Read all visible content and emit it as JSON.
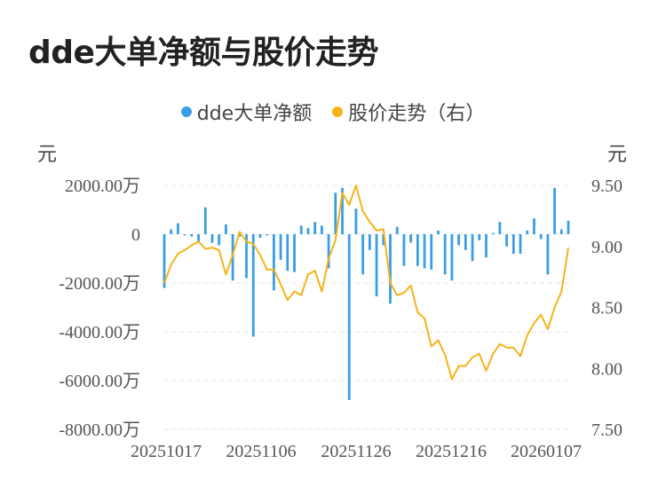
{
  "title": "dde大单净额与股价走势",
  "legend": {
    "bar_label": "dde大单净额",
    "line_label": "股价走势（右）"
  },
  "units": {
    "left": "元",
    "right": "元"
  },
  "colors": {
    "bar": "#3a9ee4",
    "line": "#f5b318",
    "grid": "#e6e6e6"
  },
  "chart_data": {
    "type": "bar",
    "title": "dde大单净额与股价走势",
    "x_tick_labels": [
      "20251017",
      "20251106",
      "20251126",
      "20251216",
      "20260107"
    ],
    "y_left_ticks": [
      "2000.00万",
      "0",
      "-2000.00万",
      "-4000.00万",
      "-6000.00万",
      "-8000.00万"
    ],
    "y_right_ticks": [
      "9.50",
      "9.00",
      "8.50",
      "8.00",
      "7.50"
    ],
    "ylim_left": [
      -8000,
      2000
    ],
    "ylim_right": [
      7.5,
      9.5
    ],
    "grid": true,
    "legend_position": "top-center",
    "series": [
      {
        "name": "dde大单净额",
        "type": "bar",
        "axis": "left",
        "unit": "万",
        "values": [
          -2200,
          200,
          450,
          -50,
          -100,
          -350,
          1100,
          -350,
          -450,
          400,
          -1900,
          -100,
          -1800,
          -4200,
          -150,
          -50,
          -2300,
          -1050,
          -1500,
          -1550,
          350,
          250,
          500,
          350,
          -1400,
          1700,
          1900,
          -6800,
          1050,
          -1650,
          -650,
          -2550,
          -450,
          -2850,
          300,
          -1300,
          -350,
          -1300,
          -1400,
          -1450,
          150,
          -1650,
          -1900,
          -450,
          -650,
          -1100,
          -250,
          -950,
          50,
          500,
          -500,
          -800,
          -800,
          150,
          650,
          -200,
          -1650,
          1900,
          200,
          550
        ]
      },
      {
        "name": "股价走势（右）",
        "type": "line",
        "axis": "right",
        "values": [
          8.7,
          8.85,
          8.94,
          8.97,
          9.01,
          9.04,
          8.98,
          8.99,
          8.97,
          8.77,
          8.93,
          9.12,
          9.04,
          9.02,
          8.93,
          8.81,
          8.81,
          8.69,
          8.56,
          8.63,
          8.6,
          8.77,
          8.8,
          8.63,
          8.9,
          9.05,
          9.44,
          9.34,
          9.5,
          9.29,
          9.2,
          9.13,
          9.14,
          8.7,
          8.6,
          8.62,
          8.68,
          8.46,
          8.41,
          8.18,
          8.23,
          8.11,
          7.91,
          8.02,
          8.02,
          8.09,
          8.12,
          7.98,
          8.12,
          8.2,
          8.17,
          8.17,
          8.1,
          8.27,
          8.37,
          8.44,
          8.32,
          8.5,
          8.63,
          8.99
        ]
      }
    ]
  }
}
